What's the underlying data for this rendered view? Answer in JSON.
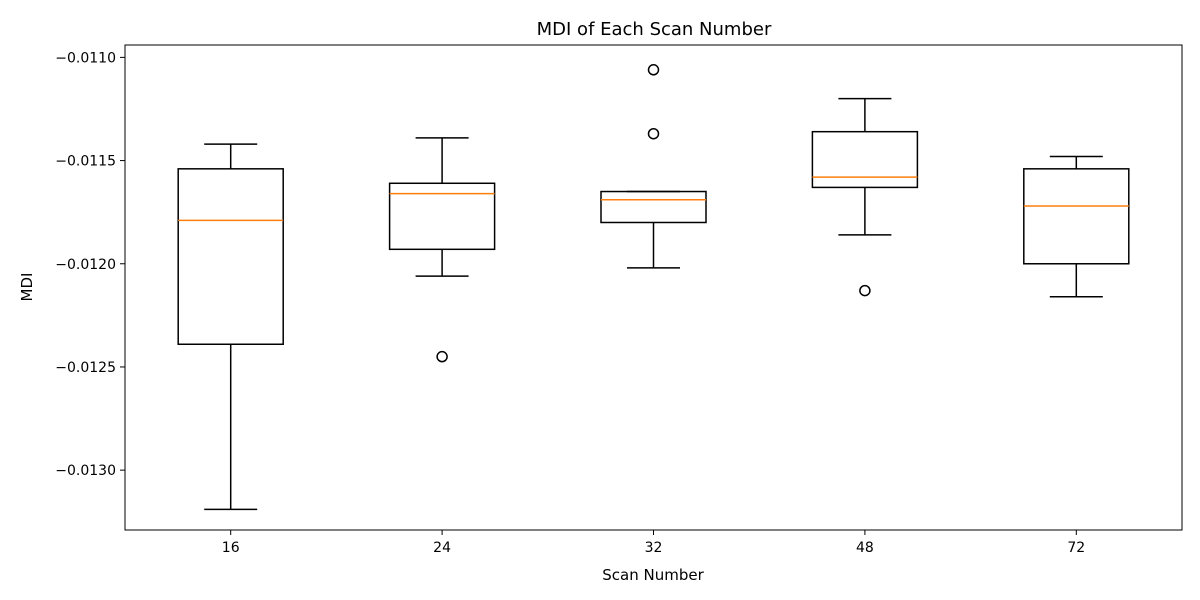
{
  "chart_data": {
    "type": "box",
    "title": "MDI of Each Scan Number",
    "xlabel": "Scan Number",
    "ylabel": "MDI",
    "categories": [
      "16",
      "24",
      "32",
      "48",
      "72"
    ],
    "ylim": [
      -0.01329,
      -0.01094
    ],
    "yticks": [
      -0.011,
      -0.0115,
      -0.012,
      -0.0125,
      -0.013
    ],
    "ytick_labels": [
      "−0.0110",
      "−0.0115",
      "−0.0120",
      "−0.0125",
      "−0.0130"
    ],
    "boxes": [
      {
        "category": "16",
        "whisker_low": -0.01319,
        "q1": -0.01239,
        "median": -0.01179,
        "q3": -0.01154,
        "whisker_high": -0.01142,
        "outliers": []
      },
      {
        "category": "24",
        "whisker_low": -0.01206,
        "q1": -0.01193,
        "median": -0.01166,
        "q3": -0.01161,
        "whisker_high": -0.01139,
        "outliers": [
          -0.01245
        ]
      },
      {
        "category": "32",
        "whisker_low": -0.01202,
        "q1": -0.0118,
        "median": -0.01169,
        "q3": -0.01165,
        "whisker_high": -0.01165,
        "outliers": [
          -0.01106,
          -0.01137
        ]
      },
      {
        "category": "48",
        "whisker_low": -0.01186,
        "q1": -0.01163,
        "median": -0.01158,
        "q3": -0.01136,
        "whisker_high": -0.0112,
        "outliers": [
          -0.01213
        ]
      },
      {
        "category": "72",
        "whisker_low": -0.01216,
        "q1": -0.012,
        "median": -0.01172,
        "q3": -0.01154,
        "whisker_high": -0.01148,
        "outliers": []
      }
    ],
    "colors": {
      "box": "#000000",
      "median": "#ff7f0e"
    },
    "grid": false
  }
}
